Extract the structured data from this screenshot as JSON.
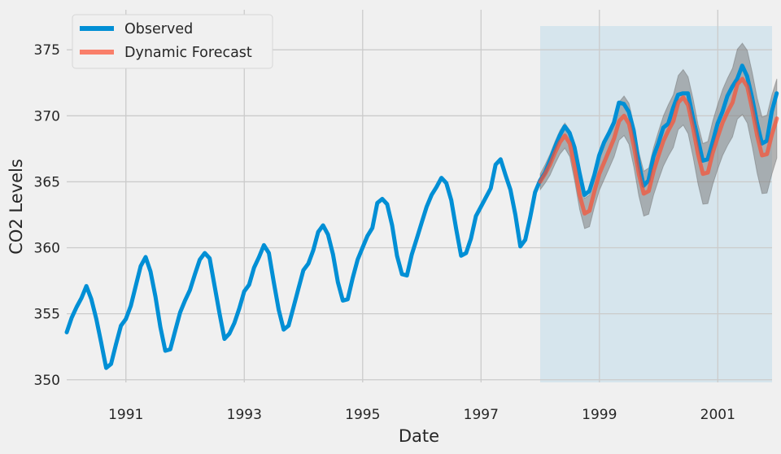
{
  "chart_data": {
    "type": "line",
    "xlabel": "Date",
    "ylabel": "CO2 Levels",
    "xlim": [
      1990.0,
      2001.917
    ],
    "ylim": [
      349.8,
      376.8
    ],
    "x_ticks": [
      1991,
      1993,
      1995,
      1997,
      1999,
      2001
    ],
    "x_tick_labels": [
      "1991",
      "1993",
      "1995",
      "1997",
      "1999",
      "2001"
    ],
    "y_ticks": [
      350,
      355,
      360,
      365,
      370,
      375
    ],
    "y_tick_labels": [
      "350",
      "355",
      "360",
      "365",
      "370",
      "375"
    ],
    "grid": true,
    "legend_position": "top-left",
    "forecast_region": {
      "x_start": 1998.0,
      "x_end": 2001.917,
      "color": "#bcd9ea"
    },
    "colors": {
      "observed": "#008fd5",
      "forecast": "#fc4f30",
      "ci": "#7f7f7f",
      "background": "#f0f0f0",
      "grid": "#cbcbcb"
    },
    "series": [
      {
        "name": "Observed",
        "x_start": 1990.0,
        "x_step": 0.0833,
        "values": [
          353.6,
          354.7,
          355.5,
          356.2,
          357.1,
          356.1,
          354.6,
          352.8,
          350.9,
          351.2,
          352.7,
          354.1,
          354.6,
          355.6,
          357.1,
          358.6,
          359.3,
          358.2,
          356.3,
          354.0,
          352.2,
          352.3,
          353.7,
          355.1,
          356.0,
          356.8,
          358.0,
          359.1,
          359.6,
          359.2,
          357.1,
          355.0,
          353.1,
          353.5,
          354.3,
          355.4,
          356.7,
          357.2,
          358.5,
          359.3,
          360.2,
          359.6,
          357.4,
          355.3,
          353.8,
          354.1,
          355.5,
          356.9,
          358.3,
          358.8,
          359.8,
          361.2,
          361.7,
          361.0,
          359.5,
          357.4,
          356.0,
          356.1,
          357.7,
          359.1,
          360.0,
          360.9,
          361.5,
          363.4,
          363.7,
          363.3,
          361.7,
          359.4,
          358.0,
          357.9,
          359.5,
          360.7,
          361.9,
          363.1,
          364.0,
          364.6,
          365.3,
          364.9,
          363.6,
          361.4,
          359.4,
          359.6,
          360.7,
          362.4,
          363.1,
          363.8,
          364.5,
          366.3,
          366.7,
          365.5,
          364.4,
          362.5,
          360.1,
          360.6,
          362.3,
          364.2,
          365.1,
          365.7,
          366.6,
          367.6,
          368.5,
          369.2,
          368.7,
          367.6,
          365.7,
          364.0,
          364.3,
          365.5,
          367.0,
          368.0,
          368.7,
          369.5,
          371.0,
          370.9,
          370.3,
          368.9,
          366.5,
          364.7,
          365.1,
          366.9,
          367.9,
          369.1,
          369.4,
          370.6,
          371.6,
          371.7,
          371.7,
          369.9,
          368.3,
          366.6,
          366.7,
          368.0,
          369.4,
          370.3,
          371.5,
          372.2,
          372.8,
          373.8,
          373.0,
          371.4,
          369.5,
          367.9,
          368.1,
          370.3,
          371.7
        ]
      },
      {
        "name": "Dynamic Forecast",
        "x_start": 1998.0,
        "x_step": 0.0833,
        "values": [
          365.0,
          365.6,
          366.3,
          367.2,
          368.0,
          368.5,
          367.9,
          366.1,
          364.0,
          362.6,
          362.8,
          364.3,
          365.6,
          366.5,
          367.4,
          368.3,
          369.6,
          370.0,
          369.4,
          367.7,
          365.6,
          364.1,
          364.3,
          365.8,
          367.0,
          368.1,
          368.9,
          369.6,
          371.0,
          371.4,
          370.8,
          369.1,
          367.1,
          365.6,
          365.7,
          367.2,
          368.4,
          369.5,
          370.3,
          371.0,
          372.4,
          372.8,
          372.2,
          370.5,
          368.5,
          367.0,
          367.1,
          368.6,
          369.8
        ],
        "ci_halfwidth": [
          0.6,
          0.7,
          0.8,
          0.85,
          0.9,
          0.95,
          1.0,
          1.05,
          1.1,
          1.15,
          1.2,
          1.2,
          1.25,
          1.3,
          1.35,
          1.4,
          1.45,
          1.5,
          1.55,
          1.6,
          1.65,
          1.7,
          1.75,
          1.8,
          1.85,
          1.9,
          1.95,
          2.0,
          2.05,
          2.1,
          2.15,
          2.2,
          2.25,
          2.3,
          2.35,
          2.4,
          2.45,
          2.5,
          2.55,
          2.6,
          2.65,
          2.7,
          2.75,
          2.8,
          2.85,
          2.9,
          2.95,
          3.0,
          3.0
        ]
      }
    ]
  }
}
